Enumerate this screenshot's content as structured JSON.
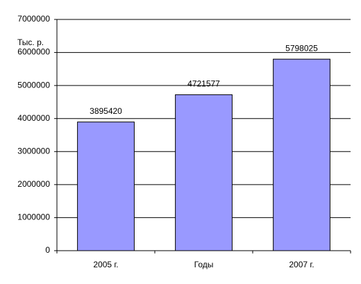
{
  "chart_data": {
    "type": "bar",
    "y_label": "Тыс. р.",
    "categories": [
      "2005 г.",
      "Годы",
      "2007 г."
    ],
    "values": [
      3895420,
      4721577,
      5798025
    ],
    "color": "#9999ff",
    "ylim": [
      0,
      7000000
    ],
    "yticks": [
      0,
      1000000,
      2000000,
      3000000,
      4000000,
      5000000,
      6000000,
      7000000
    ],
    "grid": true,
    "data_labels": true
  }
}
